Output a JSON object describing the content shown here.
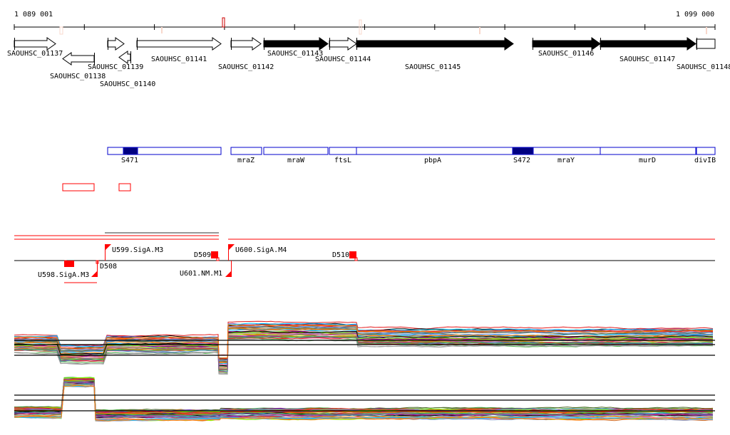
{
  "ruler": {
    "start_label": "1 089 001",
    "end_label": "1 099 000"
  },
  "genes": [
    {
      "id": "SAOUHSC_01137",
      "strand": "+",
      "fill": "white"
    },
    {
      "id": "SAOUHSC_01138",
      "strand": "-",
      "fill": "white"
    },
    {
      "id": "SAOUHSC_01139",
      "strand": "+",
      "fill": "white"
    },
    {
      "id": "SAOUHSC_01140",
      "strand": "-",
      "fill": "white"
    },
    {
      "id": "SAOUHSC_01141",
      "strand": "+",
      "fill": "white"
    },
    {
      "id": "SAOUHSC_01142",
      "strand": "+",
      "fill": "white"
    },
    {
      "id": "SAOUHSC_01143",
      "strand": "+",
      "fill": "black"
    },
    {
      "id": "SAOUHSC_01144",
      "strand": "+",
      "fill": "white"
    },
    {
      "id": "SAOUHSC_01145",
      "strand": "+",
      "fill": "black"
    },
    {
      "id": "SAOUHSC_01146",
      "strand": "+",
      "fill": "black"
    },
    {
      "id": "SAOUHSC_01147",
      "strand": "+",
      "fill": "black"
    },
    {
      "id": "SAOUHSC_01148",
      "strand": "+",
      "fill": "white"
    }
  ],
  "gene_names": [
    "S471",
    "mraZ",
    "mraW",
    "ftsL",
    "pbpA",
    "S472",
    "mraY",
    "murD",
    "divIB"
  ],
  "features": {
    "u598": "U598.SigA.M3",
    "u599": "U599.SigA.M3",
    "u600": "U600.SigA.M4",
    "u601": "U601.NM.M1",
    "d509": "D509",
    "d510": "D510",
    "d508": "D508"
  },
  "colors": {
    "accent": "#ff0000",
    "gene_box": "#0000cc",
    "gene_fill": "#000080",
    "mark": "#f8d8cc"
  },
  "track_palette": [
    "#e41a1c",
    "#377eb8",
    "#4daf4a",
    "#984ea3",
    "#ff7f00",
    "#a65628",
    "#f781bf",
    "#999999",
    "#66c2a5",
    "#8da0cb",
    "#b3b300",
    "#00bfff",
    "#ff4500",
    "#8b008b",
    "#556b2f",
    "#d2691e",
    "#7fff00",
    "#000000",
    "#c71585",
    "#6495ed"
  ]
}
